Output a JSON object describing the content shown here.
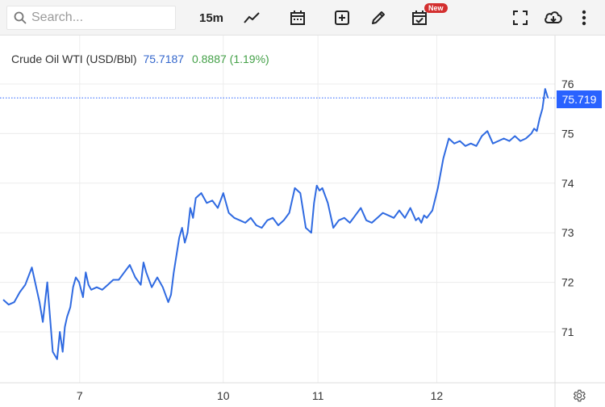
{
  "toolbar": {
    "search_placeholder": "Search...",
    "interval": "15m",
    "new_badge": "New",
    "icons": [
      "search-icon",
      "line-chart-icon",
      "calendar-icon",
      "add-indicator-icon",
      "draw-pencil-icon",
      "calendar-check-icon",
      "fullscreen-icon",
      "cloud-download-icon",
      "more-vertical-icon"
    ]
  },
  "legend": {
    "name": "Crude Oil WTI (USD/Bbl)",
    "price": "75.7187",
    "change": "0.8887 (1.19%)"
  },
  "last_price_label": "75.719",
  "colors": {
    "line": "#2f6ae1",
    "grid": "#ececec",
    "price_tag": "#2962ff",
    "positive": "#43a047",
    "price_text": "#3366cc"
  },
  "chart_data": {
    "type": "line",
    "x_ticks": [
      "7",
      "10",
      "11",
      "12"
    ],
    "y_ticks": [
      71,
      72,
      73,
      74,
      75,
      76
    ],
    "ylim": [
      70.2,
      76.3
    ],
    "grid": true,
    "last_value": 75.719,
    "x_range": [
      0,
      1
    ],
    "x_tick_positions": [
      0.139,
      0.4,
      0.572,
      0.788
    ],
    "series": [
      {
        "x": [
          0.0,
          0.01,
          0.02,
          0.03,
          0.04,
          0.052,
          0.06,
          0.066,
          0.072,
          0.08,
          0.09,
          0.098,
          0.103,
          0.108,
          0.112,
          0.116,
          0.122,
          0.127,
          0.132,
          0.138,
          0.145,
          0.15,
          0.155,
          0.16,
          0.17,
          0.18,
          0.19,
          0.2,
          0.21,
          0.22,
          0.23,
          0.24,
          0.25,
          0.255,
          0.26,
          0.27,
          0.28,
          0.29,
          0.3,
          0.305,
          0.31,
          0.315,
          0.32,
          0.325,
          0.33,
          0.335,
          0.34,
          0.345,
          0.35,
          0.36,
          0.37,
          0.38,
          0.39,
          0.4,
          0.41,
          0.42,
          0.43,
          0.44,
          0.45,
          0.46,
          0.47,
          0.48,
          0.49,
          0.5,
          0.51,
          0.52,
          0.53,
          0.54,
          0.55,
          0.56,
          0.565,
          0.57,
          0.575,
          0.58,
          0.59,
          0.6,
          0.61,
          0.62,
          0.63,
          0.64,
          0.65,
          0.66,
          0.67,
          0.68,
          0.69,
          0.7,
          0.71,
          0.72,
          0.73,
          0.74,
          0.75,
          0.755,
          0.76,
          0.765,
          0.77,
          0.78,
          0.79,
          0.8,
          0.81,
          0.82,
          0.83,
          0.84,
          0.85,
          0.86,
          0.87,
          0.88,
          0.89,
          0.9,
          0.91,
          0.92,
          0.93,
          0.94,
          0.95,
          0.96,
          0.965,
          0.97,
          0.975,
          0.98,
          0.985,
          0.99
        ],
        "y": [
          71.65,
          71.55,
          71.6,
          71.8,
          71.95,
          72.3,
          71.9,
          71.6,
          71.2,
          72.0,
          70.6,
          70.45,
          71.0,
          70.6,
          71.1,
          71.3,
          71.5,
          71.9,
          72.1,
          72.0,
          71.7,
          72.2,
          71.95,
          71.85,
          71.9,
          71.85,
          71.95,
          72.05,
          72.05,
          72.2,
          72.35,
          72.1,
          71.95,
          72.4,
          72.2,
          71.9,
          72.1,
          71.9,
          71.6,
          71.75,
          72.2,
          72.55,
          72.9,
          73.1,
          72.8,
          73.0,
          73.5,
          73.3,
          73.7,
          73.8,
          73.6,
          73.65,
          73.5,
          73.8,
          73.4,
          73.3,
          73.25,
          73.2,
          73.3,
          73.15,
          73.1,
          73.25,
          73.3,
          73.15,
          73.25,
          73.4,
          73.9,
          73.8,
          73.1,
          73.0,
          73.6,
          73.95,
          73.85,
          73.9,
          73.6,
          73.1,
          73.25,
          73.3,
          73.2,
          73.35,
          73.5,
          73.25,
          73.2,
          73.3,
          73.4,
          73.35,
          73.3,
          73.45,
          73.3,
          73.5,
          73.25,
          73.3,
          73.2,
          73.35,
          73.3,
          73.45,
          73.9,
          74.5,
          74.9,
          74.8,
          74.85,
          74.75,
          74.8,
          74.75,
          74.95,
          75.05,
          74.8,
          74.85,
          74.9,
          74.85,
          74.95,
          74.85,
          74.9,
          75.0,
          75.1,
          75.05,
          75.3,
          75.5,
          75.9,
          75.72
        ]
      }
    ]
  }
}
